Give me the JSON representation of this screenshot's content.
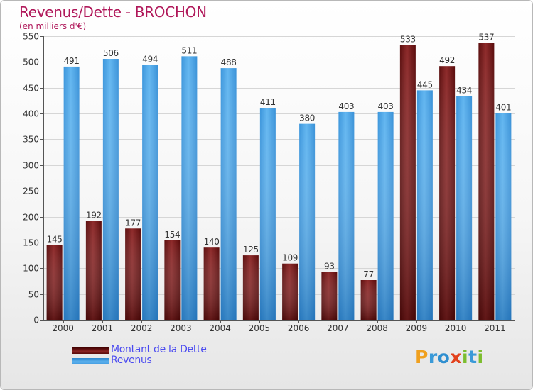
{
  "title": "Revenus/Dette - BROCHON",
  "subtitle": "(en milliers d'€)",
  "legend": {
    "dette_label": "Montant de la Dette",
    "revenus_label": "Revenus"
  },
  "logo_text": "Proxiti",
  "colors": {
    "dette": "#7a1a1a",
    "revenus": "#4aa6e8",
    "title": "#b0185a",
    "legend_text": "#4a4af0"
  },
  "chart_data": {
    "type": "bar",
    "title": "Revenus/Dette - BROCHON",
    "subtitle": "(en milliers d'€)",
    "categories": [
      "2000",
      "2001",
      "2002",
      "2003",
      "2004",
      "2005",
      "2006",
      "2007",
      "2008",
      "2009",
      "2010",
      "2011"
    ],
    "series": [
      {
        "name": "Montant de la Dette",
        "values": [
          145,
          192,
          177,
          154,
          140,
          125,
          109,
          93,
          77,
          533,
          492,
          537
        ]
      },
      {
        "name": "Revenus",
        "values": [
          491,
          506,
          494,
          511,
          488,
          411,
          380,
          403,
          403,
          445,
          434,
          401
        ]
      }
    ],
    "yticks": [
      0,
      50,
      100,
      150,
      200,
      250,
      300,
      350,
      400,
      450,
      500,
      550
    ],
    "ylim": [
      0,
      550
    ],
    "grid": true,
    "legend_position": "bottom-left"
  }
}
